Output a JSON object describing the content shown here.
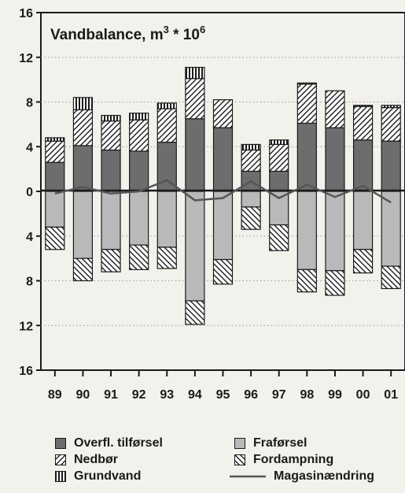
{
  "chart_data": {
    "type": "bar",
    "title_text": "Vandbalance, m",
    "title_sup1": "3",
    "title_mid": " * 10",
    "title_sup2": "6",
    "categories": [
      "89",
      "90",
      "91",
      "92",
      "93",
      "94",
      "95",
      "96",
      "97",
      "98",
      "99",
      "00",
      "01"
    ],
    "y_tick_labels": [
      "16",
      "12",
      "8",
      "4",
      "0",
      "4",
      "8",
      "12",
      "16"
    ],
    "ylim": [
      -16,
      16
    ],
    "grid": true,
    "series": [
      {
        "name": "Overfl. tilførsel",
        "direction": "positive",
        "fill": "dark",
        "values": [
          2.6,
          4.1,
          3.7,
          3.6,
          4.4,
          6.5,
          5.7,
          1.8,
          1.8,
          6.1,
          5.7,
          4.6,
          4.5
        ]
      },
      {
        "name": "Nedbør",
        "direction": "positive",
        "fill": "hatch-pos",
        "values": [
          1.9,
          3.2,
          2.6,
          2.8,
          3.0,
          3.6,
          2.5,
          1.9,
          2.4,
          3.5,
          3.3,
          3.0,
          3.0
        ]
      },
      {
        "name": "Grundvand",
        "direction": "positive",
        "fill": "vertical",
        "values": [
          0.3,
          1.1,
          0.5,
          0.6,
          0.5,
          1.0,
          0.0,
          0.5,
          0.4,
          0.1,
          0.0,
          0.1,
          0.2
        ]
      },
      {
        "name": "Fraførsel",
        "direction": "negative",
        "fill": "light",
        "values": [
          3.2,
          6.0,
          5.2,
          4.8,
          5.0,
          9.8,
          6.1,
          1.4,
          3.0,
          7.0,
          7.1,
          5.2,
          6.7
        ]
      },
      {
        "name": "Fordampning",
        "direction": "negative",
        "fill": "hatch-neg",
        "values": [
          2.0,
          2.0,
          2.0,
          2.2,
          1.9,
          2.1,
          2.2,
          2.0,
          2.3,
          2.0,
          2.2,
          2.1,
          2.0
        ]
      },
      {
        "name": "Magasinændring",
        "type": "line",
        "values": [
          -0.2,
          0.4,
          -0.2,
          0.0,
          1.0,
          -0.8,
          -0.6,
          0.9,
          -0.6,
          0.6,
          -0.5,
          0.5,
          -1.0
        ]
      }
    ],
    "legend": {
      "position": "bottom",
      "items": [
        {
          "label": "Overfl. tilførsel",
          "swatch": "dark"
        },
        {
          "label": "Fraførsel",
          "swatch": "light"
        },
        {
          "label": "Nedbør",
          "swatch": "hatch-pos"
        },
        {
          "label": "Fordampning",
          "swatch": "hatch-neg"
        },
        {
          "label": "Grundvand",
          "swatch": "vertical"
        },
        {
          "label": "Magasinændring",
          "swatch": "line"
        }
      ]
    },
    "colors": {
      "background": "#f3f1ec",
      "dark": "#6d6d6d",
      "light": "#b9b9b9",
      "hatch_bg": "#ffffff",
      "ink": "#1a1a1a",
      "line": "#555555"
    }
  }
}
